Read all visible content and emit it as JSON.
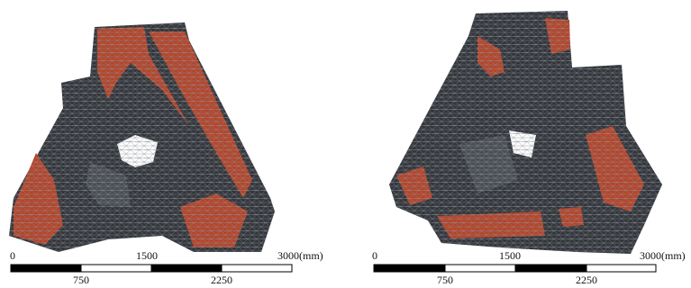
{
  "panels": [
    {
      "scale_bar": {
        "top_labels": [
          "0",
          "1500",
          "3000(mm)"
        ],
        "bottom_labels": [
          "750",
          "2250"
        ]
      }
    },
    {
      "scale_bar": {
        "top_labels": [
          "0",
          "1500",
          "3000(mm)"
        ],
        "bottom_labels": [
          "750",
          "2250"
        ]
      }
    }
  ]
}
